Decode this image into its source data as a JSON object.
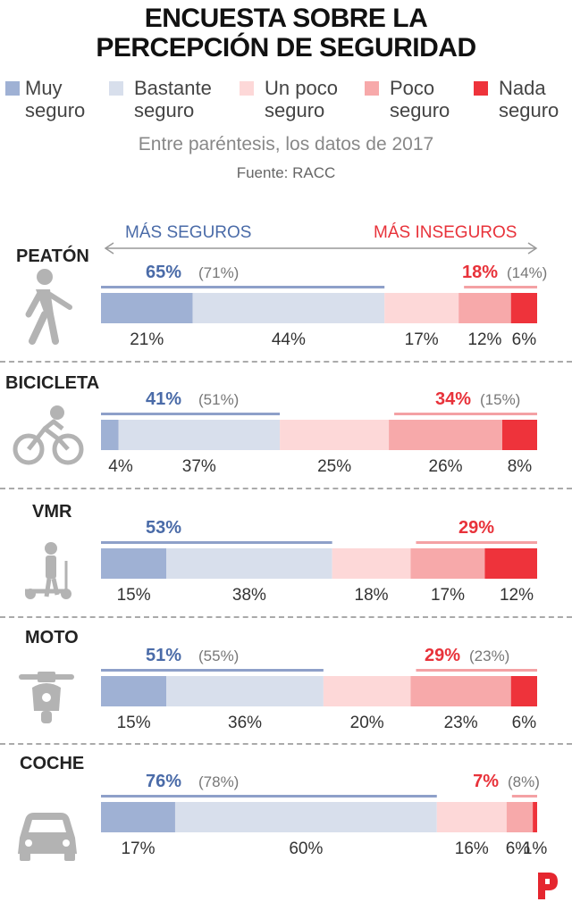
{
  "title_line1": "ENCUESTA SOBRE LA",
  "title_line2": "PERCEPCIÓN DE SEGURIDAD",
  "legend": [
    {
      "line1": "Muy",
      "line2": "seguro",
      "color": "#9fb1d4"
    },
    {
      "line1": "Bastante",
      "line2": "seguro",
      "color": "#d8dfec"
    },
    {
      "line1": "Un poco",
      "line2": "seguro",
      "color": "#fdd8d8"
    },
    {
      "line1": "Poco",
      "line2": "seguro",
      "color": "#f7a9aa"
    },
    {
      "line1": "Nada",
      "line2": "seguro",
      "color": "#ee333b"
    }
  ],
  "subtitle": "Entre paréntesis, los datos de 2017",
  "source": "Fuente: RACC",
  "direction_safe": "MÁS SEGUROS",
  "direction_unsafe": "MÁS INSEGUROS",
  "colors": {
    "safe_text": "#4a6ba8",
    "unsafe_text": "#e8323a",
    "safe_line": "#8ea0c9",
    "unsafe_line": "#f4a1a4",
    "icon": "#b3b3b3",
    "logo": "#e5262f"
  },
  "chart_data": {
    "type": "bar",
    "stacked": true,
    "orientation": "horizontal",
    "categories": [
      "PEATÓN",
      "BICICLETA",
      "VMR",
      "MOTO",
      "COCHE"
    ],
    "icons": [
      "pedestrian-icon",
      "bicycle-icon",
      "scooter-icon",
      "motorbike-icon",
      "car-icon"
    ],
    "series": [
      {
        "name": "Muy seguro",
        "values": [
          21,
          4,
          15,
          15,
          17
        ]
      },
      {
        "name": "Bastante seguro",
        "values": [
          44,
          37,
          38,
          36,
          60
        ]
      },
      {
        "name": "Un poco seguro",
        "values": [
          17,
          25,
          18,
          20,
          16
        ]
      },
      {
        "name": "Poco seguro",
        "values": [
          12,
          26,
          17,
          23,
          6
        ]
      },
      {
        "name": "Nada seguro",
        "values": [
          6,
          8,
          12,
          6,
          1
        ]
      }
    ],
    "safe_totals": [
      65,
      41,
      53,
      51,
      76
    ],
    "safe_totals_2017": [
      "(71%)",
      "(51%)",
      "",
      "(55%)",
      "(78%)"
    ],
    "unsafe_totals": [
      18,
      34,
      29,
      29,
      7
    ],
    "unsafe_totals_2017": [
      "(14%)",
      "(15%)",
      "",
      "(23%)",
      "(8%)"
    ]
  }
}
